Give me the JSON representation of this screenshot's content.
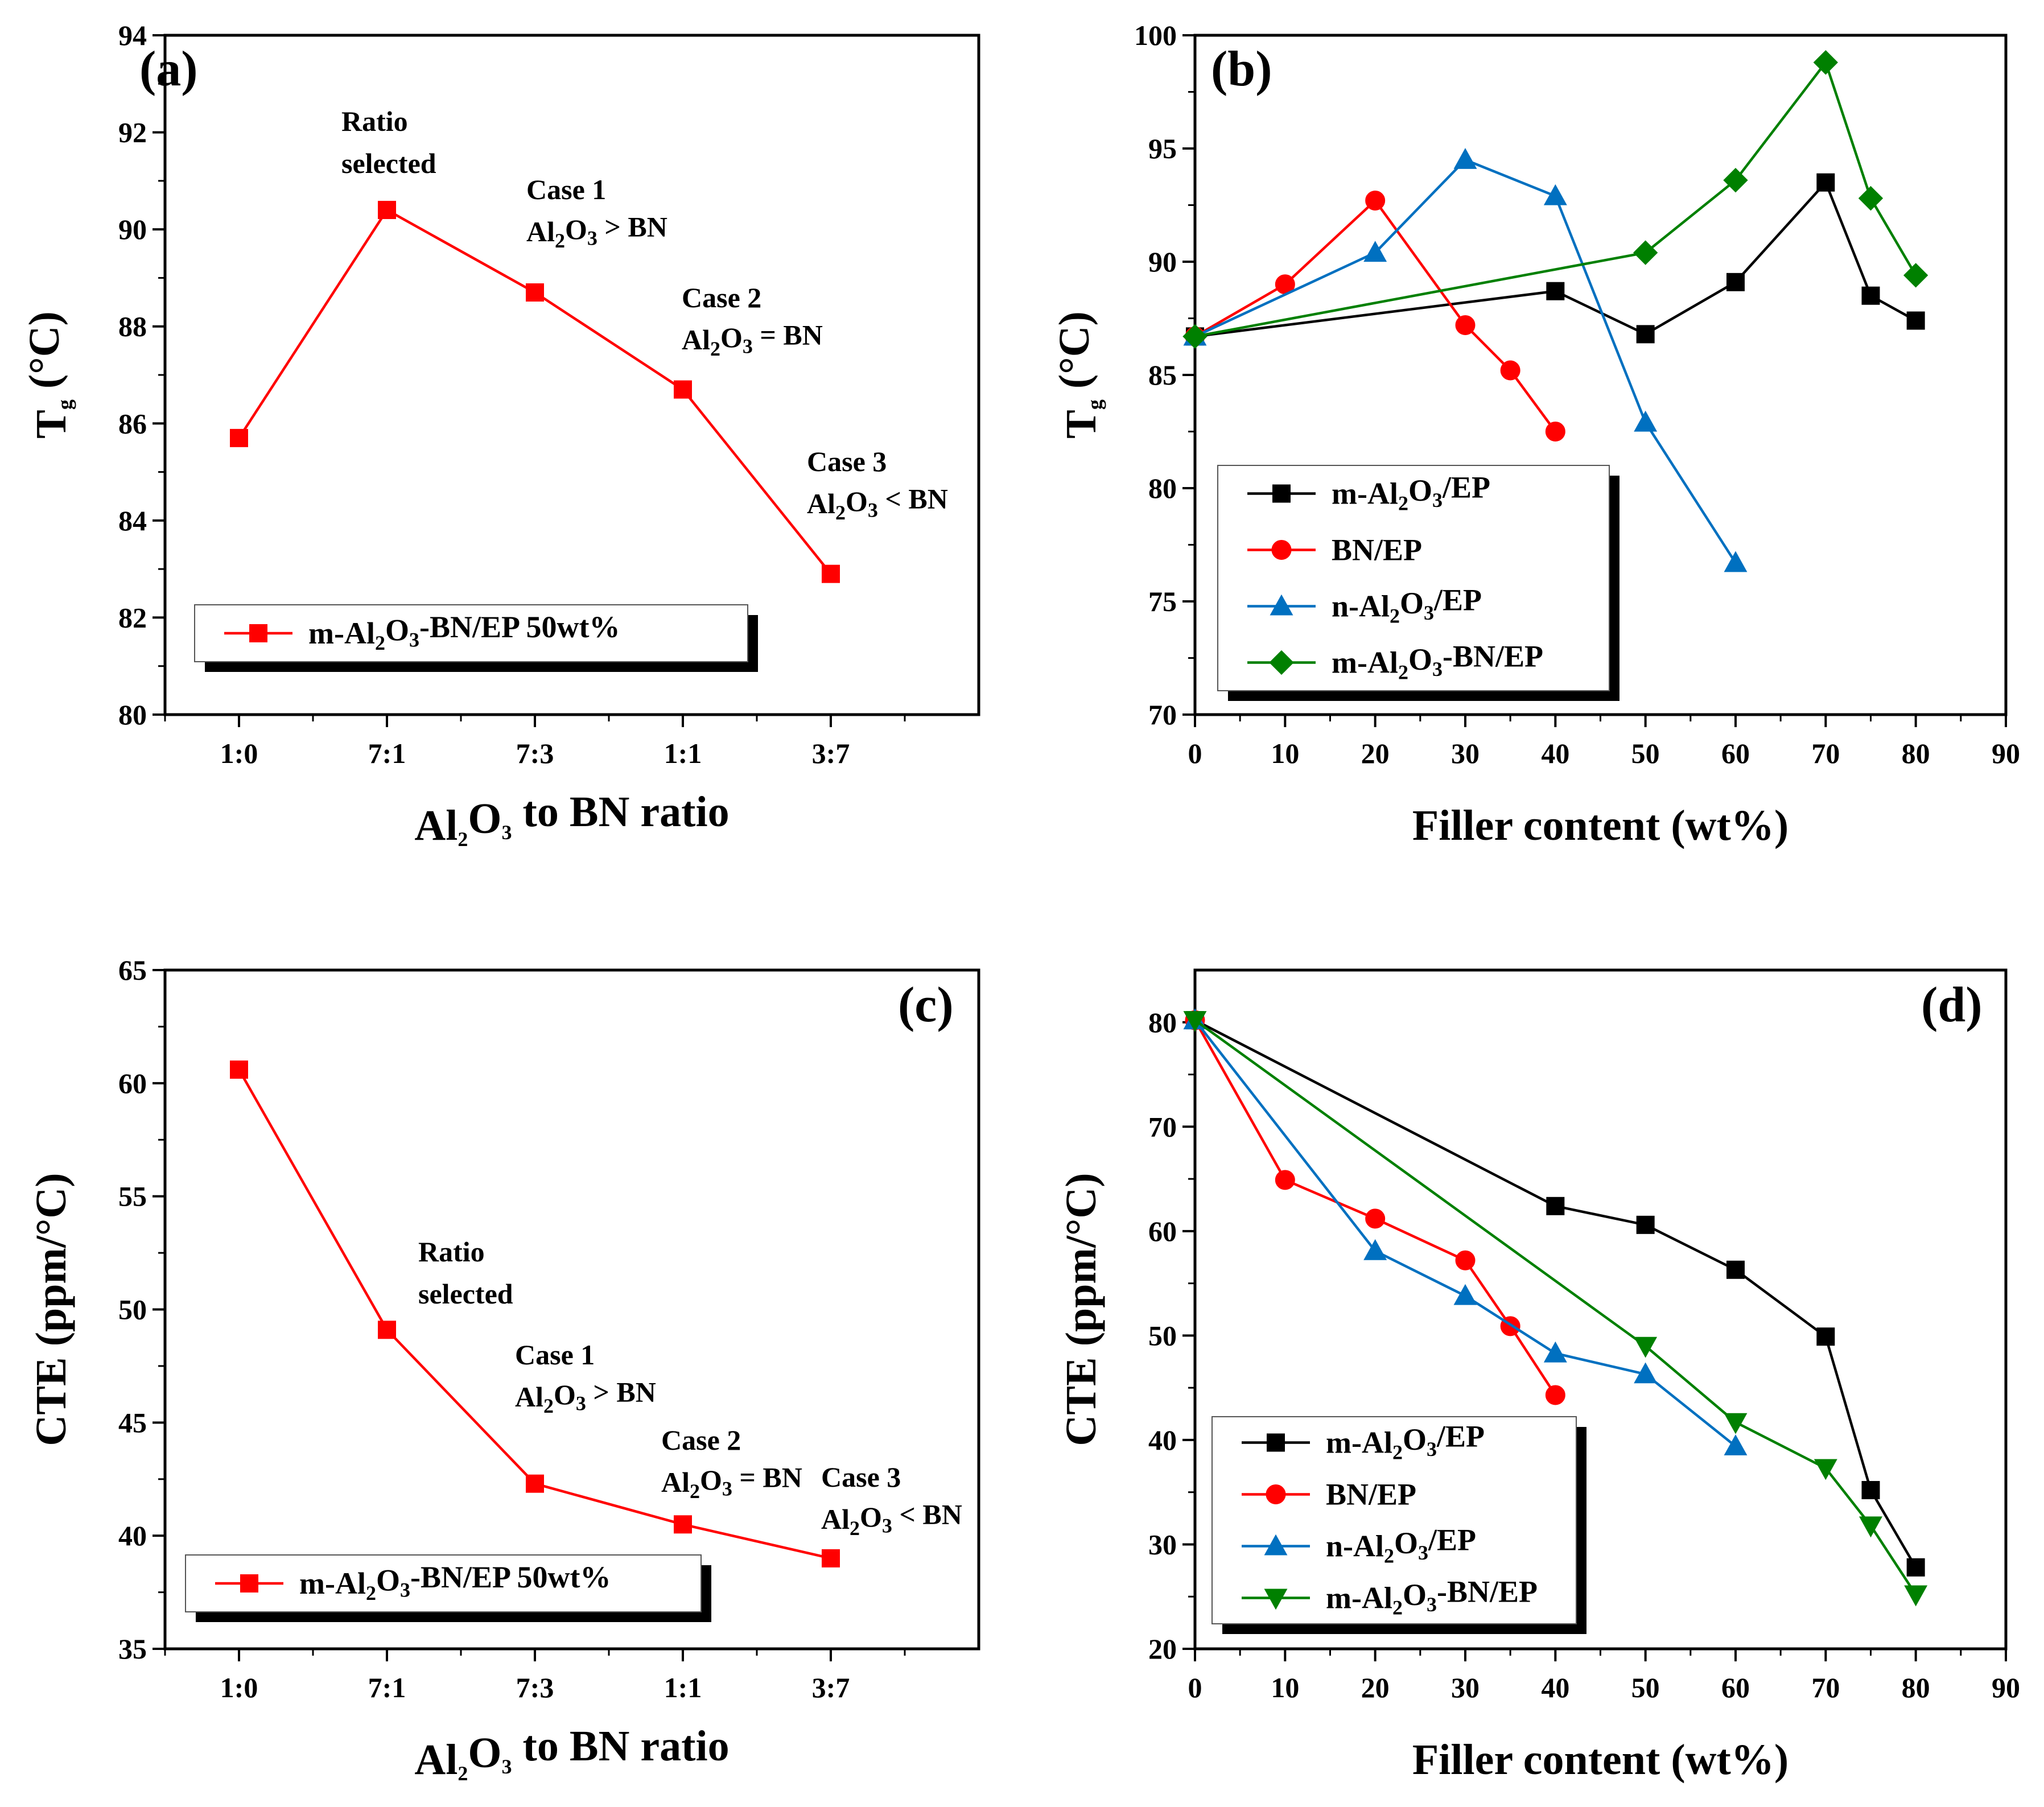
{
  "chart_data": [
    {
      "panel": "(a)",
      "type": "line",
      "xlabel": "Al2O3 to BN ratio",
      "ylabel": "Tg (°C)",
      "categories": [
        "1:0",
        "7:1",
        "7:3",
        "1:1",
        "3:7"
      ],
      "ylim": [
        80,
        94
      ],
      "yticks": [
        80,
        82,
        84,
        86,
        88,
        90,
        92,
        94
      ],
      "series": [
        {
          "name": "m-Al2O3-BN/EP 50wt%",
          "color": "#ff0000",
          "marker": "square",
          "values": [
            85.7,
            90.4,
            88.7,
            86.7,
            82.9
          ]
        }
      ],
      "annotations": [
        {
          "at": "7:1",
          "lines": [
            "Ratio",
            "selected"
          ]
        },
        {
          "at": "7:3",
          "lines": [
            "Case 1",
            "Al2O3 > BN"
          ]
        },
        {
          "at": "1:1",
          "lines": [
            "Case 2",
            "Al2O3 = BN"
          ]
        },
        {
          "at": "3:7",
          "lines": [
            "Case 3",
            "Al2O3 < BN"
          ]
        }
      ],
      "legend": "bottom-left"
    },
    {
      "panel": "(b)",
      "type": "line",
      "xlabel": "Filler content (wt%)",
      "ylabel": "Tg (°C)",
      "xlim": [
        0,
        90
      ],
      "xticks": [
        0,
        10,
        20,
        30,
        40,
        50,
        60,
        70,
        80,
        90
      ],
      "ylim": [
        70,
        100
      ],
      "yticks": [
        70,
        75,
        80,
        85,
        90,
        95,
        100
      ],
      "series": [
        {
          "name": "m-Al2O3/EP",
          "color": "#000000",
          "marker": "square",
          "x": [
            0,
            40,
            50,
            60,
            70,
            75,
            80
          ],
          "y": [
            86.7,
            88.7,
            86.8,
            89.1,
            93.5,
            88.5,
            87.4
          ]
        },
        {
          "name": "BN/EP",
          "color": "#ff0000",
          "marker": "circle",
          "x": [
            0,
            10,
            20,
            30,
            35,
            40
          ],
          "y": [
            86.7,
            89.0,
            92.7,
            87.2,
            85.2,
            82.5
          ]
        },
        {
          "name": "n-Al2O3/EP",
          "color": "#0070c0",
          "marker": "triangle-up",
          "x": [
            0,
            20,
            30,
            40,
            50,
            60
          ],
          "y": [
            86.7,
            90.4,
            94.5,
            92.9,
            82.9,
            76.7
          ]
        },
        {
          "name": "m-Al2O3-BN/EP",
          "color": "#008000",
          "marker": "diamond",
          "x": [
            0,
            50,
            60,
            70,
            75,
            80
          ],
          "y": [
            86.7,
            90.4,
            93.6,
            98.8,
            92.8,
            89.4
          ]
        }
      ],
      "legend": "bottom-left"
    },
    {
      "panel": "(c)",
      "type": "line",
      "xlabel": "Al2O3 to BN ratio",
      "ylabel": "CTE (ppm/°C)",
      "categories": [
        "1:0",
        "7:1",
        "7:3",
        "1:1",
        "3:7"
      ],
      "ylim": [
        35,
        65
      ],
      "yticks": [
        35,
        40,
        45,
        50,
        55,
        60,
        65
      ],
      "series": [
        {
          "name": "m-Al2O3-BN/EP 50wt%",
          "color": "#ff0000",
          "marker": "square",
          "values": [
            60.6,
            49.1,
            42.3,
            40.5,
            39.0
          ]
        }
      ],
      "annotations": [
        {
          "at": "7:1",
          "lines": [
            "Ratio",
            "selected"
          ]
        },
        {
          "at": "7:3",
          "lines": [
            "Case 1",
            "Al2O3 > BN"
          ]
        },
        {
          "at": "1:1",
          "lines": [
            "Case 2",
            "Al2O3 = BN"
          ]
        },
        {
          "at": "3:7",
          "lines": [
            "Case 3",
            "Al2O3 < BN"
          ]
        }
      ],
      "legend": "bottom-left"
    },
    {
      "panel": "(d)",
      "type": "line",
      "xlabel": "Filler content (wt%)",
      "ylabel": "CTE (ppm/°C)",
      "xlim": [
        0,
        90
      ],
      "xticks": [
        0,
        10,
        20,
        30,
        40,
        50,
        60,
        70,
        80,
        90
      ],
      "ylim": [
        20,
        85
      ],
      "yticks": [
        20,
        30,
        40,
        50,
        60,
        70,
        80
      ],
      "series": [
        {
          "name": "m-Al2O3/EP",
          "color": "#000000",
          "marker": "square",
          "x": [
            0,
            40,
            50,
            60,
            70,
            75,
            80
          ],
          "y": [
            80.2,
            62.4,
            60.6,
            56.3,
            49.9,
            35.2,
            27.8
          ]
        },
        {
          "name": "BN/EP",
          "color": "#ff0000",
          "marker": "circle",
          "x": [
            0,
            10,
            20,
            30,
            35,
            40
          ],
          "y": [
            80.2,
            64.9,
            61.2,
            57.2,
            50.9,
            44.3
          ]
        },
        {
          "name": "n-Al2O3/EP",
          "color": "#0070c0",
          "marker": "triangle-up",
          "x": [
            0,
            20,
            30,
            40,
            50,
            60
          ],
          "y": [
            80.2,
            58.1,
            53.8,
            48.3,
            46.3,
            39.4
          ]
        },
        {
          "name": "m-Al2O3-BN/EP",
          "color": "#008000",
          "marker": "triangle-down",
          "x": [
            0,
            50,
            60,
            70,
            75,
            80
          ],
          "y": [
            80.2,
            49.0,
            41.7,
            37.3,
            31.8,
            25.2
          ]
        }
      ],
      "legend": "bottom-left"
    }
  ]
}
